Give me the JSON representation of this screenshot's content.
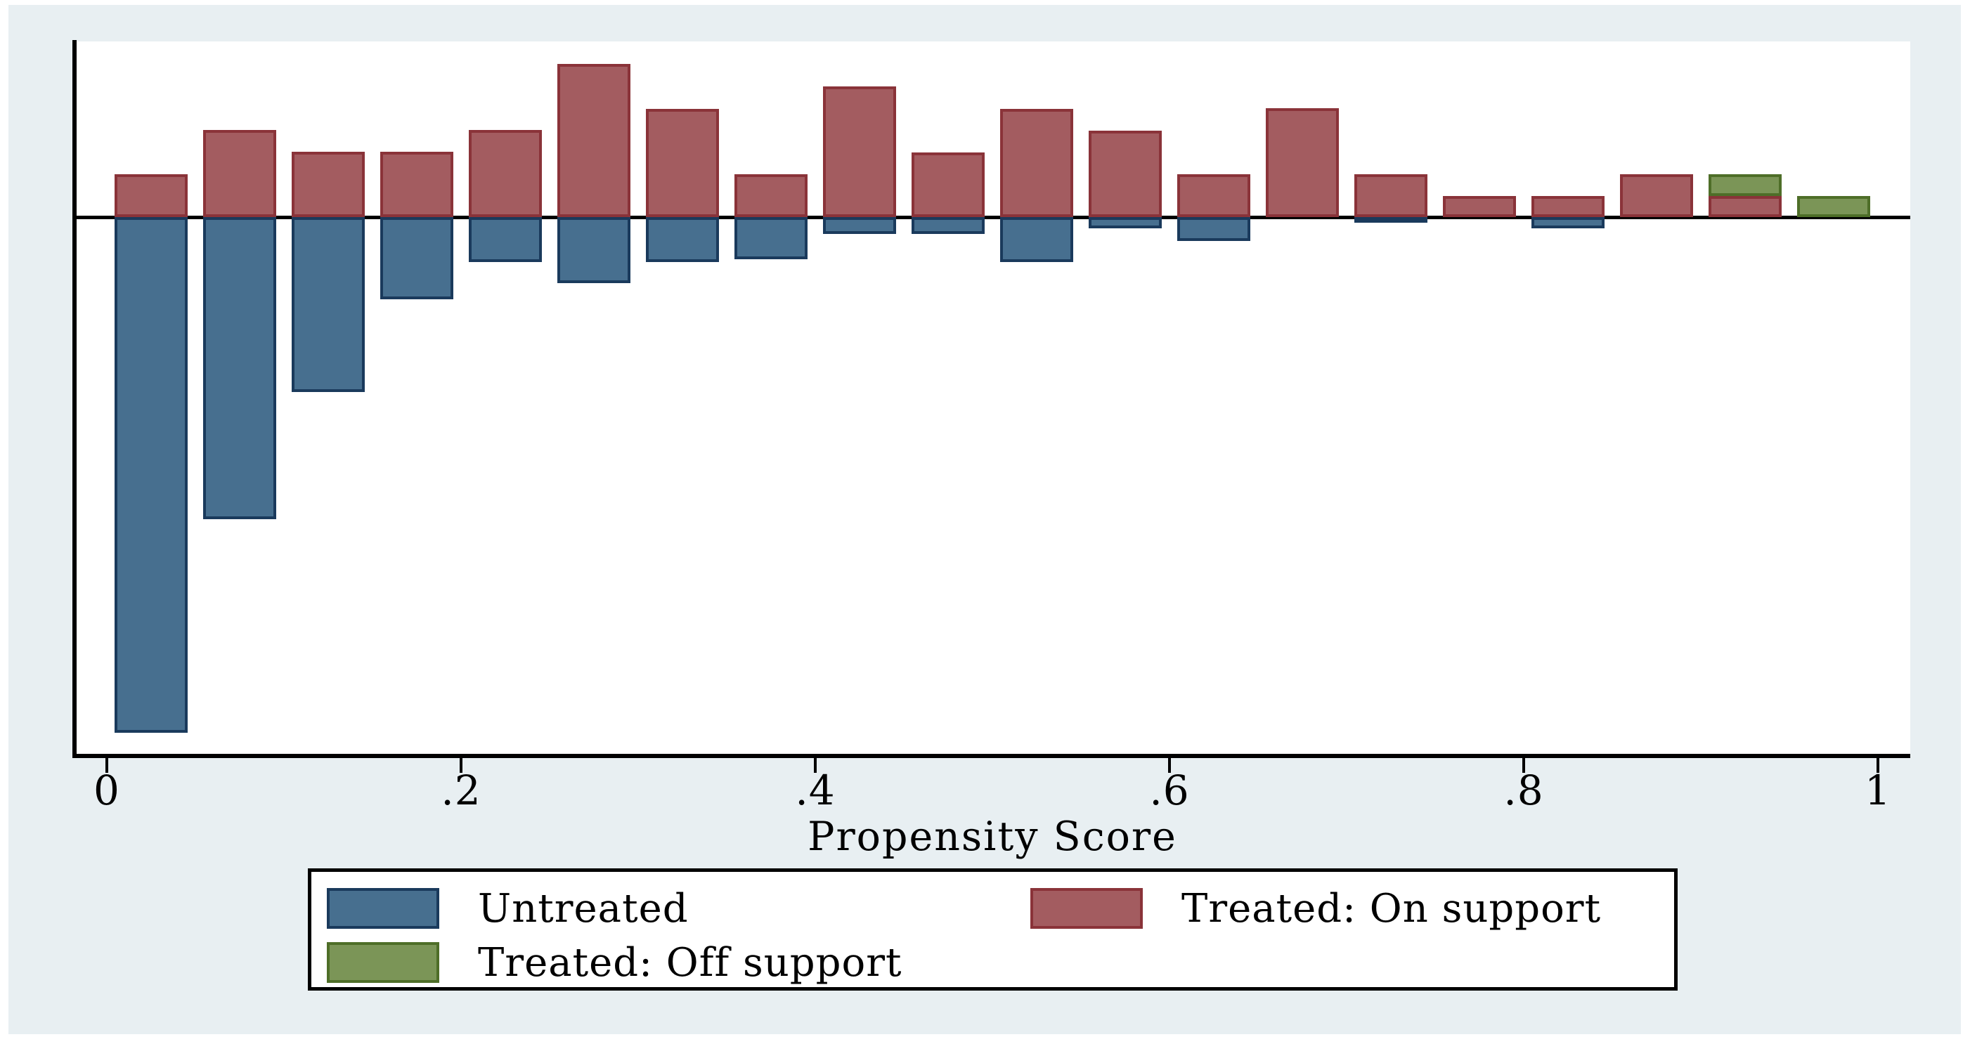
{
  "figure": {
    "kind": "Stata psgraph propensity-score overlap histogram",
    "background_color": "#e8eff2",
    "plot_background_color": "#ffffff",
    "axis_color": "#000000"
  },
  "colors": {
    "untreated_fill": "#476f8f",
    "untreated_border": "#1a3a5c",
    "treated_on_fill": "#a35c60",
    "treated_on_border": "#8a3339",
    "treated_off_fill": "#7b9557",
    "treated_off_border": "#4e6e28"
  },
  "axis": {
    "xlabel": "Propensity Score",
    "tick_labels": [
      "0",
      ".2",
      ".4",
      ".6",
      ".8",
      "1"
    ],
    "tick_values": [
      0,
      0.2,
      0.4,
      0.6,
      0.8,
      1
    ],
    "x_range": [
      0,
      1
    ],
    "y_axis_labels_shown": false
  },
  "legend": {
    "items": [
      {
        "key": "untreated",
        "label": "Untreated"
      },
      {
        "key": "treated_on",
        "label": "Treated: On support"
      },
      {
        "key": "treated_off",
        "label": "Treated: Off support"
      }
    ]
  },
  "chart_data": {
    "type": "bar",
    "subtype": "diverging histogram (treated above baseline, untreated below)",
    "title": "",
    "xlabel": "Propensity Score",
    "ylabel": "",
    "x_range": [
      0,
      1
    ],
    "bin_width": 0.05,
    "bin_centers": [
      0.025,
      0.075,
      0.125,
      0.175,
      0.225,
      0.275,
      0.325,
      0.375,
      0.425,
      0.475,
      0.525,
      0.575,
      0.625,
      0.675,
      0.725,
      0.775,
      0.825,
      0.875,
      0.925,
      0.975
    ],
    "y_units": "relative height (no y-axis scale shown in source figure)",
    "legend_position": "bottom",
    "grid": false,
    "series": [
      {
        "name": "Untreated",
        "direction": "down",
        "values": [
          7.34,
          4.3,
          2.49,
          1.17,
          0.64,
          0.94,
          0.64,
          0.6,
          0.24,
          0.24,
          0.64,
          0.16,
          0.34,
          0,
          0.08,
          0,
          0.16,
          0,
          0,
          0
        ]
      },
      {
        "name": "Treated: On support",
        "direction": "up",
        "values": [
          0.61,
          1.24,
          0.93,
          0.93,
          1.24,
          2.18,
          1.54,
          0.61,
          1.86,
          0.92,
          1.54,
          1.23,
          0.61,
          1.55,
          0.61,
          0.3,
          0.3,
          0.61,
          0.3,
          0
        ]
      },
      {
        "name": "Treated: Off support",
        "direction": "up-stacked-on-treated",
        "values": [
          0,
          0,
          0,
          0,
          0,
          0,
          0,
          0,
          0,
          0,
          0,
          0,
          0,
          0,
          0,
          0,
          0,
          0,
          0.31,
          0.3
        ]
      }
    ]
  }
}
